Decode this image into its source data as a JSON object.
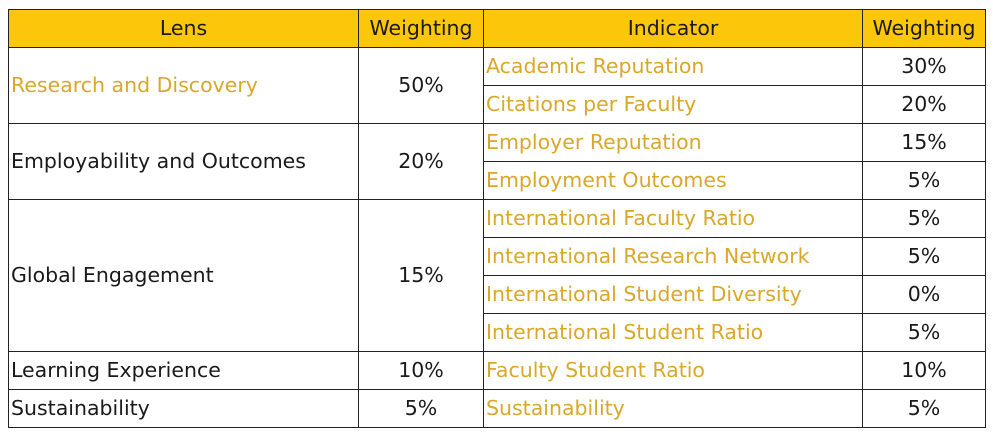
{
  "headers": {
    "lens": "Lens",
    "lens_weighting": "Weighting",
    "indicator": "Indicator",
    "indicator_weighting": "Weighting"
  },
  "lenses": [
    {
      "name": "Research and Discovery",
      "weight": "50%",
      "indicators": [
        {
          "name": "Academic Reputation",
          "weight": "30%"
        },
        {
          "name": "Citations per Faculty",
          "weight": "20%"
        }
      ]
    },
    {
      "name": "Employability and Outcomes",
      "weight": "20%",
      "indicators": [
        {
          "name": "Employer Reputation",
          "weight": "15%"
        },
        {
          "name": "Employment Outcomes",
          "weight": "5%"
        }
      ]
    },
    {
      "name": "Global Engagement",
      "weight": "15%",
      "indicators": [
        {
          "name": "International Faculty Ratio",
          "weight": "5%"
        },
        {
          "name": "International Research Network",
          "weight": "5%"
        },
        {
          "name": "International Student Diversity",
          "weight": "0%"
        },
        {
          "name": "International Student Ratio",
          "weight": "5%"
        }
      ]
    },
    {
      "name": "Learning Experience",
      "weight": "10%",
      "indicators": [
        {
          "name": "Faculty Student Ratio",
          "weight": "10%"
        }
      ]
    },
    {
      "name": "Sustainability",
      "weight": "5%",
      "indicators": [
        {
          "name": "Sustainability",
          "weight": "5%"
        }
      ]
    }
  ],
  "colors": {
    "header_background": "#fcc60b",
    "indicator_text": "#d9a72a",
    "body_text": "#1a1a1a",
    "border": "#222222"
  }
}
